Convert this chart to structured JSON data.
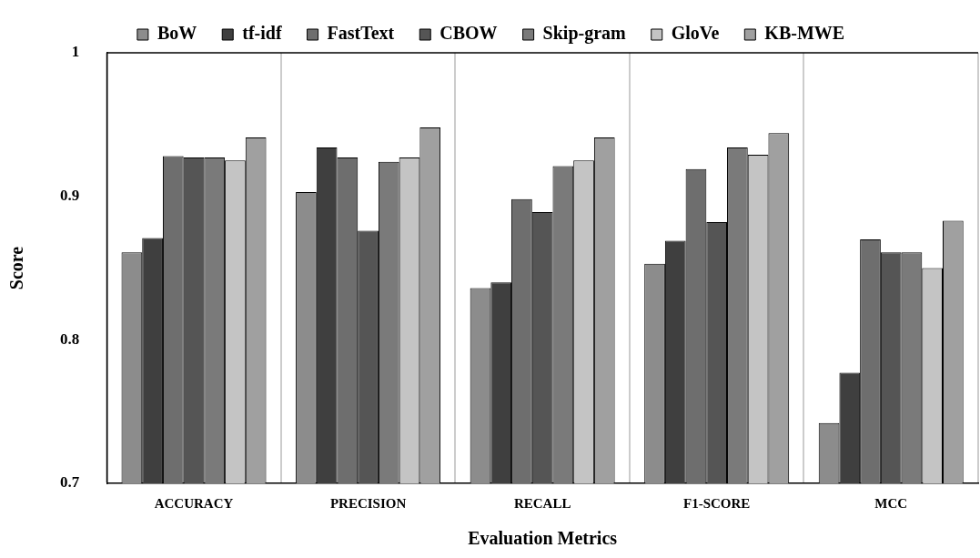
{
  "chart_data": {
    "type": "bar",
    "xlabel": "Evaluation Metrics",
    "ylabel": "Score",
    "categories": [
      "ACCURACY",
      "PRECISION",
      "RECALL",
      "F1-SCORE",
      "MCC"
    ],
    "series": [
      {
        "name": "BoW",
        "color": "#8c8c8c",
        "values": [
          0.861,
          0.903,
          0.836,
          0.853,
          0.742
        ]
      },
      {
        "name": "tf-idf",
        "color": "#3f3f3f",
        "values": [
          0.871,
          0.934,
          0.84,
          0.869,
          0.777
        ]
      },
      {
        "name": "FastText",
        "color": "#6e6e6e",
        "values": [
          0.928,
          0.927,
          0.898,
          0.919,
          0.87
        ]
      },
      {
        "name": "CBOW",
        "color": "#555555",
        "values": [
          0.927,
          0.876,
          0.889,
          0.882,
          0.861
        ]
      },
      {
        "name": "Skip-gram",
        "color": "#7a7a7a",
        "values": [
          0.927,
          0.924,
          0.921,
          0.934,
          0.861
        ]
      },
      {
        "name": "GloVe",
        "color": "#c4c4c4",
        "values": [
          0.925,
          0.927,
          0.925,
          0.929,
          0.85
        ]
      },
      {
        "name": "KB-MWE",
        "color": "#a0a0a0",
        "values": [
          0.941,
          0.948,
          0.941,
          0.944,
          0.883
        ]
      }
    ],
    "ylim": [
      0.7,
      1
    ],
    "yticks": [
      0.7,
      0.8,
      0.9,
      1
    ],
    "grid": "x",
    "legend": "top"
  }
}
